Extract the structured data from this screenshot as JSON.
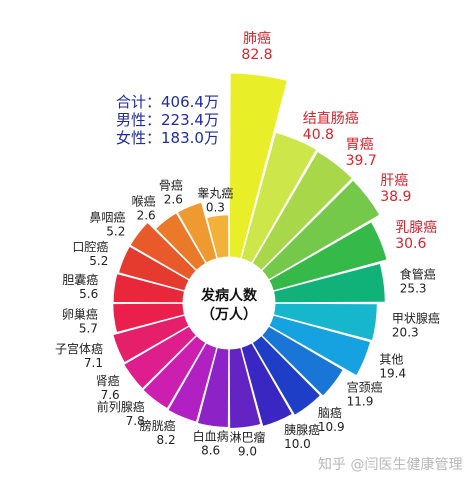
{
  "chart_data": {
    "type": "pie",
    "center_label": [
      "发病人数",
      "（万人）"
    ],
    "totals": [
      "合计：406.4万",
      "男性：223.4万",
      "女性：183.0万"
    ],
    "slices": [
      {
        "label": "肺癌",
        "value": 82.8,
        "value_text": "82.8",
        "color": "#e8ef28",
        "highlight": true
      },
      {
        "label": "结直肠癌",
        "value": 40.8,
        "value_text": "40.8",
        "color": "#cde64a",
        "highlight": true
      },
      {
        "label": "胃癌",
        "value": 39.7,
        "value_text": "39.7",
        "color": "#a8d84a",
        "highlight": true
      },
      {
        "label": "肝癌",
        "value": 38.9,
        "value_text": "38.9",
        "color": "#74c94a",
        "highlight": true
      },
      {
        "label": "乳腺癌",
        "value": 30.6,
        "value_text": "30.6",
        "color": "#35b948",
        "highlight": true
      },
      {
        "label": "食管癌",
        "value": 25.3,
        "value_text": "25.3",
        "color": "#10b27a",
        "highlight": false
      },
      {
        "label": "甲状腺癌",
        "value": 20.3,
        "value_text": "20.3",
        "color": "#16b6cc",
        "highlight": false
      },
      {
        "label": "其他",
        "value": 19.4,
        "value_text": "19.4",
        "color": "#16a2e0",
        "highlight": false
      },
      {
        "label": "宫颈癌",
        "value": 11.9,
        "value_text": "11.9",
        "color": "#1a76d6",
        "highlight": false
      },
      {
        "label": "脑癌",
        "value": 10.9,
        "value_text": "10.9",
        "color": "#1f3ec8",
        "highlight": false
      },
      {
        "label": "胰腺癌",
        "value": 10.0,
        "value_text": "10.0",
        "color": "#3a27c2",
        "highlight": false
      },
      {
        "label": "淋巴瘤",
        "value": 9.0,
        "value_text": "9.0",
        "color": "#6424c4",
        "highlight": false
      },
      {
        "label": "白血病",
        "value": 8.6,
        "value_text": "8.6",
        "color": "#8d22c6",
        "highlight": false
      },
      {
        "label": "膀胱癌",
        "value": 8.2,
        "value_text": "8.2",
        "color": "#b020c2",
        "highlight": false
      },
      {
        "label": "前列腺癌",
        "value": 7.8,
        "value_text": "7.8",
        "color": "#cc1fb0",
        "highlight": false
      },
      {
        "label": "肾癌",
        "value": 7.6,
        "value_text": "7.6",
        "color": "#dd1e8c",
        "highlight": false
      },
      {
        "label": "子宫体癌",
        "value": 7.1,
        "value_text": "7.1",
        "color": "#e61f6a",
        "highlight": false
      },
      {
        "label": "卵巢癌",
        "value": 5.7,
        "value_text": "5.7",
        "color": "#ea1f4c",
        "highlight": false
      },
      {
        "label": "胆囊癌",
        "value": 5.6,
        "value_text": "5.6",
        "color": "#e8283a",
        "highlight": false
      },
      {
        "label": "口腔癌",
        "value": 5.2,
        "value_text": "5.2",
        "color": "#e53a2e",
        "highlight": false
      },
      {
        "label": "鼻咽癌",
        "value": 5.2,
        "value_text": "5.2",
        "color": "#e85a2a",
        "highlight": false
      },
      {
        "label": "喉癌",
        "value": 2.6,
        "value_text": "2.6",
        "color": "#ea7a2a",
        "highlight": false
      },
      {
        "label": "骨癌",
        "value": 2.6,
        "value_text": "2.6",
        "color": "#ee9a30",
        "highlight": false
      },
      {
        "label": "睾丸癌",
        "value": 0.3,
        "value_text": "0.3",
        "color": "#f2b23a",
        "highlight": false
      }
    ],
    "label_colors": {
      "highlight": "#d9232d",
      "normal": "#222222"
    }
  },
  "watermark": "知乎 @闫医生健康管理"
}
